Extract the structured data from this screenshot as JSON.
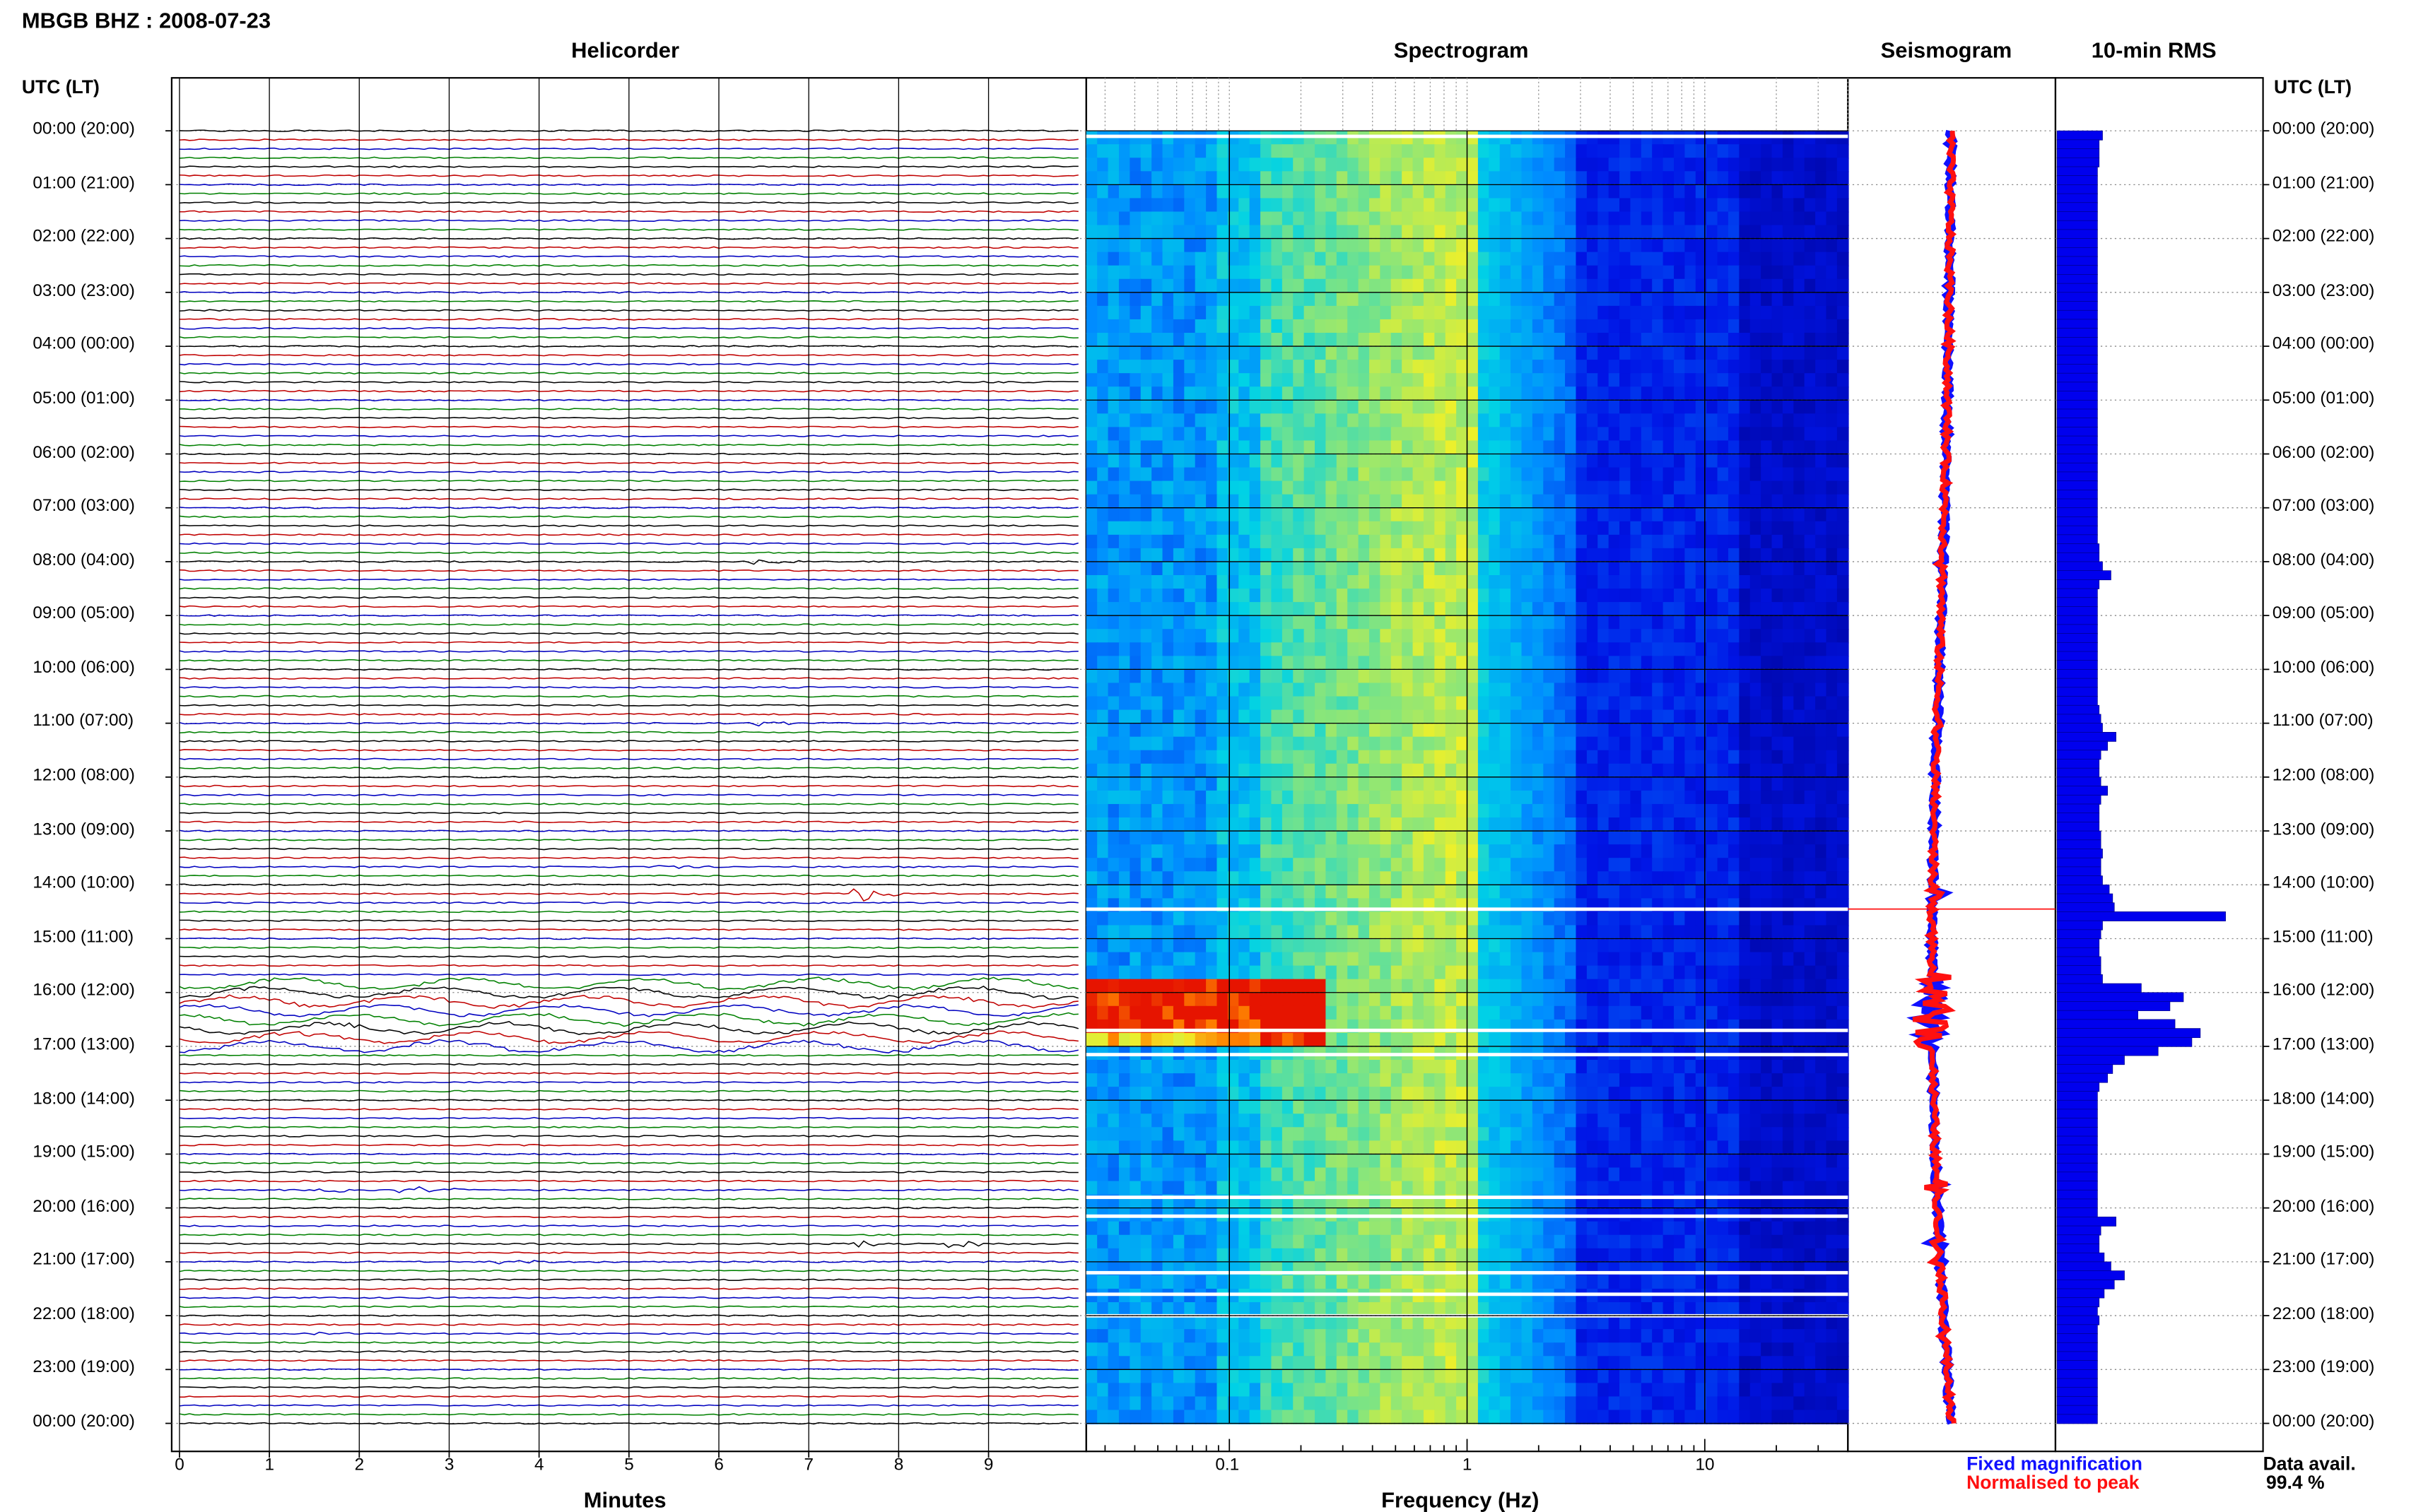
{
  "header": {
    "station_title": "MBGB BHZ : 2008-07-23"
  },
  "panels": {
    "helicorder": "Helicorder",
    "spectrogram": "Spectrogram",
    "seismogram": "Seismogram",
    "rms": "10-min RMS"
  },
  "axis": {
    "time_label_left": "UTC (LT)",
    "time_label_right": "UTC (LT)",
    "minutes_label": "Minutes",
    "frequency_label": "Frequency (Hz)"
  },
  "legend": {
    "fixed": "Fixed magnification",
    "normalised": "Normalised to peak",
    "fixed_color": "#1010ff",
    "normalised_color": "#ff1010"
  },
  "availability": {
    "label": "Data avail.",
    "value": "99.4 %"
  },
  "trace_colors": [
    "#000000",
    "#c00000",
    "#0000c0",
    "#008000"
  ],
  "chart_data": {
    "type": "helicorder",
    "time_ticks": [
      "00:00 (20:00)",
      "01:00 (21:00)",
      "02:00 (22:00)",
      "03:00 (23:00)",
      "04:00 (00:00)",
      "05:00 (01:00)",
      "06:00 (02:00)",
      "07:00 (03:00)",
      "08:00 (04:00)",
      "09:00 (05:00)",
      "10:00 (06:00)",
      "11:00 (07:00)",
      "12:00 (08:00)",
      "13:00 (09:00)",
      "14:00 (10:00)",
      "15:00 (11:00)",
      "16:00 (12:00)",
      "17:00 (13:00)",
      "18:00 (14:00)",
      "19:00 (15:00)",
      "20:00 (16:00)",
      "21:00 (17:00)",
      "22:00 (18:00)",
      "23:00 (19:00)",
      "00:00 (20:00)"
    ],
    "minutes_ticks": [
      "0",
      "1",
      "2",
      "3",
      "4",
      "5",
      "6",
      "7",
      "8",
      "9"
    ],
    "minutes_range": [
      0,
      10
    ],
    "frequency_range": [
      0.025,
      40
    ],
    "frequency_ticks": [
      {
        "value": 0.1,
        "label": "0.1"
      },
      {
        "value": 1,
        "label": "1"
      },
      {
        "value": 10,
        "label": "10"
      }
    ],
    "events": [
      {
        "hour": 8.0,
        "minute": 6.4,
        "amp": 2
      },
      {
        "hour": 11.0,
        "minute": 6.4,
        "amp": 2
      },
      {
        "hour": 13.6,
        "minute": 5.3,
        "amp": 2
      },
      {
        "hour": 14.2,
        "minute": 7.5,
        "amp": 7
      },
      {
        "hour": 16.8,
        "minute": 1.3,
        "amp": 3
      },
      {
        "hour": 19.6,
        "minute": 1.6,
        "amp": 3
      },
      {
        "hour": 19.6,
        "minute": 2.3,
        "amp": 2
      },
      {
        "hour": 19.6,
        "minute": 2.7,
        "amp": 2
      },
      {
        "hour": 20.7,
        "minute": 7.5,
        "amp": 3
      },
      {
        "hour": 20.7,
        "minute": 8.6,
        "amp": 3
      },
      {
        "hour": 21.0,
        "minute": 3.6,
        "amp": 2
      },
      {
        "hour": 22.3,
        "minute": 1.5,
        "amp": 2
      }
    ],
    "noisy_period": [
      15.8,
      17.0
    ],
    "rms_values": [
      0.27,
      0.25,
      0.25,
      0.25,
      0.24,
      0.24,
      0.24,
      0.24,
      0.24,
      0.24,
      0.24,
      0.24,
      0.24,
      0.24,
      0.24,
      0.24,
      0.24,
      0.24,
      0.24,
      0.24,
      0.24,
      0.24,
      0.24,
      0.24,
      0.24,
      0.24,
      0.24,
      0.24,
      0.24,
      0.24,
      0.24,
      0.24,
      0.24,
      0.24,
      0.24,
      0.24,
      0.24,
      0.24,
      0.24,
      0.24,
      0.24,
      0.24,
      0.24,
      0.24,
      0.24,
      0.24,
      0.25,
      0.25,
      0.27,
      0.32,
      0.25,
      0.24,
      0.24,
      0.24,
      0.24,
      0.24,
      0.24,
      0.24,
      0.24,
      0.24,
      0.24,
      0.24,
      0.24,
      0.24,
      0.25,
      0.26,
      0.27,
      0.35,
      0.3,
      0.26,
      0.25,
      0.25,
      0.26,
      0.3,
      0.26,
      0.25,
      0.25,
      0.25,
      0.26,
      0.26,
      0.27,
      0.26,
      0.26,
      0.27,
      0.31,
      0.33,
      0.34,
      1.0,
      0.27,
      0.26,
      0.25,
      0.25,
      0.26,
      0.26,
      0.27,
      0.5,
      0.75,
      0.67,
      0.48,
      0.7,
      0.85,
      0.8,
      0.6,
      0.4,
      0.33,
      0.3,
      0.25,
      0.24,
      0.24,
      0.24,
      0.24,
      0.24,
      0.24,
      0.24,
      0.24,
      0.24,
      0.24,
      0.24,
      0.24,
      0.24,
      0.24,
      0.35,
      0.26,
      0.25,
      0.25,
      0.28,
      0.32,
      0.4,
      0.34,
      0.28,
      0.25,
      0.24,
      0.25,
      0.24,
      0.24,
      0.24,
      0.24,
      0.24,
      0.24,
      0.24,
      0.24,
      0.24,
      0.24,
      0.24
    ]
  }
}
